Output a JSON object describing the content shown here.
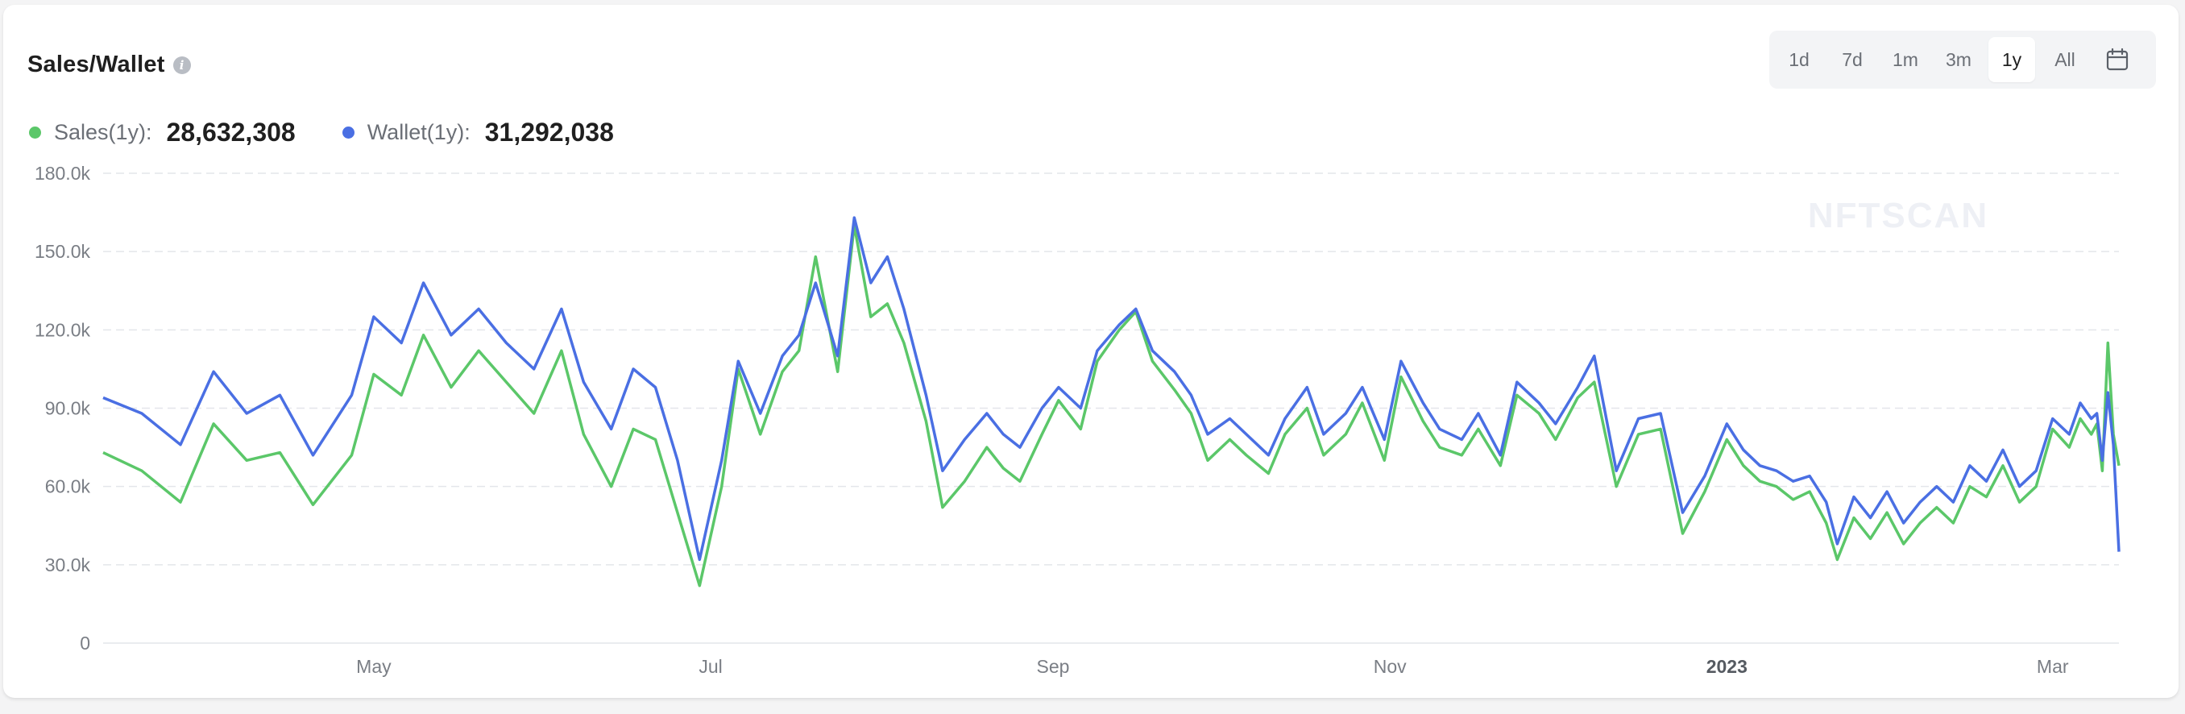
{
  "header": {
    "title": "Sales/Wallet",
    "info_icon": "info-icon"
  },
  "range_selector": {
    "options": [
      "1d",
      "7d",
      "1m",
      "3m",
      "1y",
      "All"
    ],
    "active": "1y",
    "calendar_icon": "calendar-icon"
  },
  "legend": [
    {
      "label": "Sales(1y):",
      "value": "28,632,308",
      "color": "#5bc769"
    },
    {
      "label": "Wallet(1y):",
      "value": "31,292,038",
      "color": "#4a6fe3"
    }
  ],
  "watermark": "NFTSCAN",
  "chart_data": {
    "type": "line",
    "ylim": [
      0,
      180000
    ],
    "yticks": [
      0,
      30000,
      60000,
      90000,
      120000,
      150000,
      180000
    ],
    "ytick_labels": [
      "0",
      "30.0k",
      "60.0k",
      "90.0k",
      "120.0k",
      "150.0k",
      "180.0k"
    ],
    "x_range": [
      "2022-03-13",
      "2023-03-13"
    ],
    "xticks": [
      {
        "label": "May",
        "date": "2022-05-01",
        "bold": false
      },
      {
        "label": "Jul",
        "date": "2022-07-01",
        "bold": false
      },
      {
        "label": "Sep",
        "date": "2022-09-01",
        "bold": false
      },
      {
        "label": "Nov",
        "date": "2022-11-01",
        "bold": false
      },
      {
        "label": "2023",
        "date": "2023-01-01",
        "bold": true
      },
      {
        "label": "Mar",
        "date": "2023-03-01",
        "bold": false
      }
    ],
    "grid": true,
    "series": [
      {
        "name": "Sales(1y)",
        "color": "#5bc769",
        "points": [
          [
            "2022-03-13",
            73000
          ],
          [
            "2022-03-20",
            66000
          ],
          [
            "2022-03-27",
            54000
          ],
          [
            "2022-04-02",
            84000
          ],
          [
            "2022-04-08",
            70000
          ],
          [
            "2022-04-14",
            73000
          ],
          [
            "2022-04-20",
            53000
          ],
          [
            "2022-04-27",
            72000
          ],
          [
            "2022-05-01",
            103000
          ],
          [
            "2022-05-06",
            95000
          ],
          [
            "2022-05-10",
            118000
          ],
          [
            "2022-05-15",
            98000
          ],
          [
            "2022-05-20",
            112000
          ],
          [
            "2022-05-25",
            100000
          ],
          [
            "2022-05-30",
            88000
          ],
          [
            "2022-06-04",
            112000
          ],
          [
            "2022-06-08",
            80000
          ],
          [
            "2022-06-13",
            60000
          ],
          [
            "2022-06-17",
            82000
          ],
          [
            "2022-06-21",
            78000
          ],
          [
            "2022-06-25",
            50000
          ],
          [
            "2022-06-29",
            22000
          ],
          [
            "2022-07-03",
            60000
          ],
          [
            "2022-07-06",
            105000
          ],
          [
            "2022-07-10",
            80000
          ],
          [
            "2022-07-14",
            104000
          ],
          [
            "2022-07-17",
            112000
          ],
          [
            "2022-07-20",
            148000
          ],
          [
            "2022-07-24",
            104000
          ],
          [
            "2022-07-27",
            160000
          ],
          [
            "2022-07-30",
            125000
          ],
          [
            "2022-08-02",
            130000
          ],
          [
            "2022-08-05",
            115000
          ],
          [
            "2022-08-09",
            85000
          ],
          [
            "2022-08-12",
            52000
          ],
          [
            "2022-08-16",
            62000
          ],
          [
            "2022-08-20",
            75000
          ],
          [
            "2022-08-23",
            67000
          ],
          [
            "2022-08-26",
            62000
          ],
          [
            "2022-08-30",
            80000
          ],
          [
            "2022-09-02",
            93000
          ],
          [
            "2022-09-06",
            82000
          ],
          [
            "2022-09-09",
            108000
          ],
          [
            "2022-09-13",
            120000
          ],
          [
            "2022-09-16",
            127000
          ],
          [
            "2022-09-19",
            108000
          ],
          [
            "2022-09-23",
            97000
          ],
          [
            "2022-09-26",
            88000
          ],
          [
            "2022-09-29",
            70000
          ],
          [
            "2022-10-03",
            78000
          ],
          [
            "2022-10-06",
            72000
          ],
          [
            "2022-10-10",
            65000
          ],
          [
            "2022-10-13",
            80000
          ],
          [
            "2022-10-17",
            90000
          ],
          [
            "2022-10-20",
            72000
          ],
          [
            "2022-10-24",
            80000
          ],
          [
            "2022-10-27",
            92000
          ],
          [
            "2022-10-31",
            70000
          ],
          [
            "2022-11-03",
            102000
          ],
          [
            "2022-11-07",
            85000
          ],
          [
            "2022-11-10",
            75000
          ],
          [
            "2022-11-14",
            72000
          ],
          [
            "2022-11-17",
            82000
          ],
          [
            "2022-11-21",
            68000
          ],
          [
            "2022-11-24",
            95000
          ],
          [
            "2022-11-28",
            88000
          ],
          [
            "2022-12-01",
            78000
          ],
          [
            "2022-12-05",
            94000
          ],
          [
            "2022-12-08",
            100000
          ],
          [
            "2022-12-12",
            60000
          ],
          [
            "2022-12-16",
            80000
          ],
          [
            "2022-12-20",
            82000
          ],
          [
            "2022-12-24",
            42000
          ],
          [
            "2022-12-28",
            58000
          ],
          [
            "2023-01-01",
            78000
          ],
          [
            "2023-01-04",
            68000
          ],
          [
            "2023-01-07",
            62000
          ],
          [
            "2023-01-10",
            60000
          ],
          [
            "2023-01-13",
            55000
          ],
          [
            "2023-01-16",
            58000
          ],
          [
            "2023-01-19",
            46000
          ],
          [
            "2023-01-21",
            32000
          ],
          [
            "2023-01-24",
            48000
          ],
          [
            "2023-01-27",
            40000
          ],
          [
            "2023-01-30",
            50000
          ],
          [
            "2023-02-02",
            38000
          ],
          [
            "2023-02-05",
            46000
          ],
          [
            "2023-02-08",
            52000
          ],
          [
            "2023-02-11",
            46000
          ],
          [
            "2023-02-14",
            60000
          ],
          [
            "2023-02-17",
            56000
          ],
          [
            "2023-02-20",
            68000
          ],
          [
            "2023-02-23",
            54000
          ],
          [
            "2023-02-26",
            60000
          ],
          [
            "2023-03-01",
            82000
          ],
          [
            "2023-03-04",
            75000
          ],
          [
            "2023-03-06",
            86000
          ],
          [
            "2023-03-08",
            80000
          ],
          [
            "2023-03-09",
            84000
          ],
          [
            "2023-03-10",
            66000
          ],
          [
            "2023-03-11",
            115000
          ],
          [
            "2023-03-12",
            80000
          ],
          [
            "2023-03-13",
            68000
          ]
        ]
      },
      {
        "name": "Wallet(1y)",
        "color": "#4a6fe3",
        "points": [
          [
            "2022-03-13",
            94000
          ],
          [
            "2022-03-20",
            88000
          ],
          [
            "2022-03-27",
            76000
          ],
          [
            "2022-04-02",
            104000
          ],
          [
            "2022-04-08",
            88000
          ],
          [
            "2022-04-14",
            95000
          ],
          [
            "2022-04-20",
            72000
          ],
          [
            "2022-04-27",
            95000
          ],
          [
            "2022-05-01",
            125000
          ],
          [
            "2022-05-06",
            115000
          ],
          [
            "2022-05-10",
            138000
          ],
          [
            "2022-05-15",
            118000
          ],
          [
            "2022-05-20",
            128000
          ],
          [
            "2022-05-25",
            115000
          ],
          [
            "2022-05-30",
            105000
          ],
          [
            "2022-06-04",
            128000
          ],
          [
            "2022-06-08",
            100000
          ],
          [
            "2022-06-13",
            82000
          ],
          [
            "2022-06-17",
            105000
          ],
          [
            "2022-06-21",
            98000
          ],
          [
            "2022-06-25",
            70000
          ],
          [
            "2022-06-29",
            32000
          ],
          [
            "2022-07-03",
            70000
          ],
          [
            "2022-07-06",
            108000
          ],
          [
            "2022-07-10",
            88000
          ],
          [
            "2022-07-14",
            110000
          ],
          [
            "2022-07-17",
            118000
          ],
          [
            "2022-07-20",
            138000
          ],
          [
            "2022-07-24",
            110000
          ],
          [
            "2022-07-27",
            163000
          ],
          [
            "2022-07-30",
            138000
          ],
          [
            "2022-08-02",
            148000
          ],
          [
            "2022-08-05",
            128000
          ],
          [
            "2022-08-09",
            95000
          ],
          [
            "2022-08-12",
            66000
          ],
          [
            "2022-08-16",
            78000
          ],
          [
            "2022-08-20",
            88000
          ],
          [
            "2022-08-23",
            80000
          ],
          [
            "2022-08-26",
            75000
          ],
          [
            "2022-08-30",
            90000
          ],
          [
            "2022-09-02",
            98000
          ],
          [
            "2022-09-06",
            90000
          ],
          [
            "2022-09-09",
            112000
          ],
          [
            "2022-09-13",
            122000
          ],
          [
            "2022-09-16",
            128000
          ],
          [
            "2022-09-19",
            112000
          ],
          [
            "2022-09-23",
            104000
          ],
          [
            "2022-09-26",
            95000
          ],
          [
            "2022-09-29",
            80000
          ],
          [
            "2022-10-03",
            86000
          ],
          [
            "2022-10-06",
            80000
          ],
          [
            "2022-10-10",
            72000
          ],
          [
            "2022-10-13",
            86000
          ],
          [
            "2022-10-17",
            98000
          ],
          [
            "2022-10-20",
            80000
          ],
          [
            "2022-10-24",
            88000
          ],
          [
            "2022-10-27",
            98000
          ],
          [
            "2022-10-31",
            78000
          ],
          [
            "2022-11-03",
            108000
          ],
          [
            "2022-11-07",
            92000
          ],
          [
            "2022-11-10",
            82000
          ],
          [
            "2022-11-14",
            78000
          ],
          [
            "2022-11-17",
            88000
          ],
          [
            "2022-11-21",
            72000
          ],
          [
            "2022-11-24",
            100000
          ],
          [
            "2022-11-28",
            92000
          ],
          [
            "2022-12-01",
            84000
          ],
          [
            "2022-12-05",
            98000
          ],
          [
            "2022-12-08",
            110000
          ],
          [
            "2022-12-12",
            66000
          ],
          [
            "2022-12-16",
            86000
          ],
          [
            "2022-12-20",
            88000
          ],
          [
            "2022-12-24",
            50000
          ],
          [
            "2022-12-28",
            64000
          ],
          [
            "2023-01-01",
            84000
          ],
          [
            "2023-01-04",
            74000
          ],
          [
            "2023-01-07",
            68000
          ],
          [
            "2023-01-10",
            66000
          ],
          [
            "2023-01-13",
            62000
          ],
          [
            "2023-01-16",
            64000
          ],
          [
            "2023-01-19",
            54000
          ],
          [
            "2023-01-21",
            38000
          ],
          [
            "2023-01-24",
            56000
          ],
          [
            "2023-01-27",
            48000
          ],
          [
            "2023-01-30",
            58000
          ],
          [
            "2023-02-02",
            46000
          ],
          [
            "2023-02-05",
            54000
          ],
          [
            "2023-02-08",
            60000
          ],
          [
            "2023-02-11",
            54000
          ],
          [
            "2023-02-14",
            68000
          ],
          [
            "2023-02-17",
            62000
          ],
          [
            "2023-02-20",
            74000
          ],
          [
            "2023-02-23",
            60000
          ],
          [
            "2023-02-26",
            66000
          ],
          [
            "2023-03-01",
            86000
          ],
          [
            "2023-03-04",
            80000
          ],
          [
            "2023-03-06",
            92000
          ],
          [
            "2023-03-08",
            86000
          ],
          [
            "2023-03-09",
            88000
          ],
          [
            "2023-03-10",
            70000
          ],
          [
            "2023-03-11",
            96000
          ],
          [
            "2023-03-12",
            76000
          ],
          [
            "2023-03-13",
            35000
          ]
        ]
      }
    ]
  }
}
